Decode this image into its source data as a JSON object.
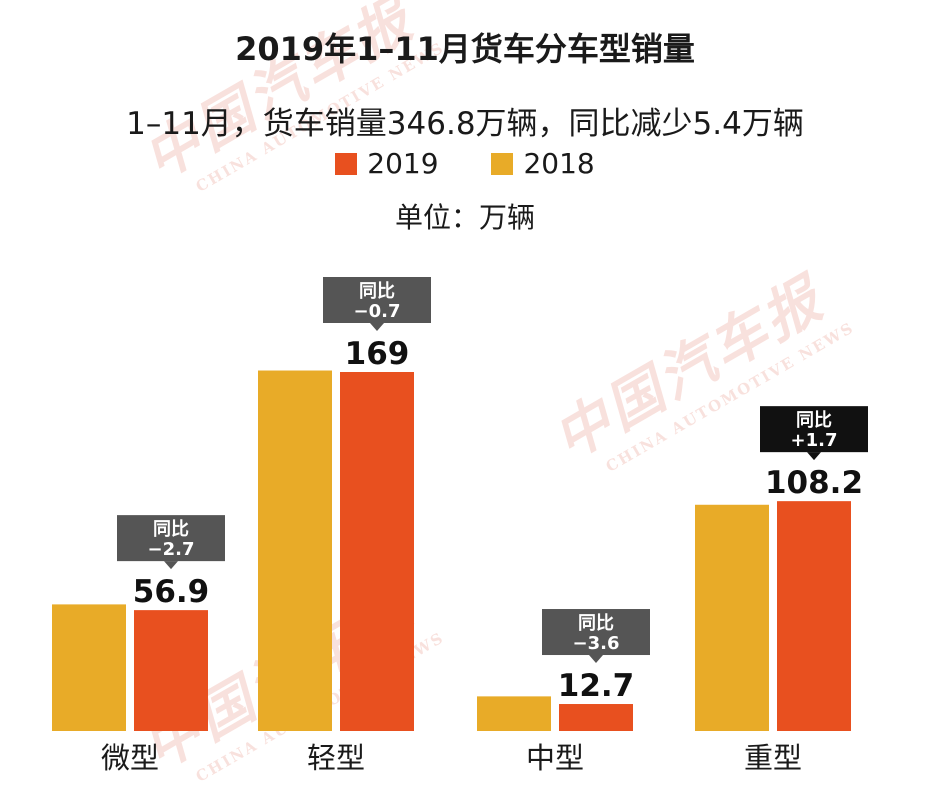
{
  "title": "2019年1–11月货车分车型销量",
  "subtitle": "1–11月，货车销量346.8万辆，同比减少5.4万辆",
  "legend": {
    "items": [
      {
        "label": "2019",
        "color": "#e8501f"
      },
      {
        "label": "2018",
        "color": "#e8ab28"
      }
    ]
  },
  "unit_label": "单位：万辆",
  "watermark": {
    "cn": "中国汽车报",
    "en": "CHINA AUTOMOTIVE NEWS"
  },
  "chart_data": {
    "type": "bar",
    "categories": [
      "微型",
      "轻型",
      "中型",
      "重型"
    ],
    "series": [
      {
        "name": "2018",
        "color": "#e8ab28",
        "values": [
          59.6,
          169.7,
          16.3,
          106.5
        ]
      },
      {
        "name": "2019",
        "color": "#e8501f",
        "values": [
          56.9,
          169,
          12.7,
          108.2
        ]
      }
    ],
    "data_labels": [
      "56.9",
      "169",
      "12.7",
      "108.2"
    ],
    "callouts": [
      {
        "line1": "同比",
        "line2": "−2.7",
        "bg": "#555555"
      },
      {
        "line1": "同比",
        "line2": "−0.7",
        "bg": "#555555"
      },
      {
        "line1": "同比",
        "line2": "−3.6",
        "bg": "#555555"
      },
      {
        "line1": "同比",
        "line2": "+1.7",
        "bg": "#111111"
      }
    ],
    "ylim": [
      0,
      169
    ],
    "grid": false,
    "legend_position": "top"
  }
}
